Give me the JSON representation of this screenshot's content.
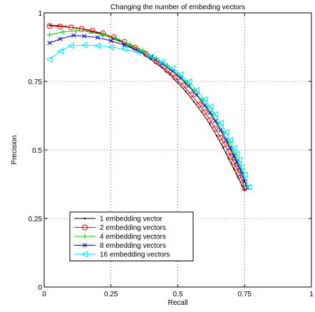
{
  "chart_data": {
    "type": "line",
    "title": "Changing the number of embeding vectors",
    "xlabel": "Recall",
    "ylabel": "Precision",
    "xlim": [
      0,
      1
    ],
    "ylim": [
      0,
      1
    ],
    "xticks": [
      0,
      0.25,
      0.5,
      0.75,
      1
    ],
    "xtick_labels": [
      "0",
      "0.25",
      "0.5",
      "0.75",
      "1"
    ],
    "yticks": [
      0,
      0.25,
      0.5,
      0.75,
      1
    ],
    "ytick_labels": [
      "0",
      "0.25",
      "0.5",
      "0.75",
      "1"
    ],
    "grid": true,
    "grid_style": "dotted",
    "legend_position": "bottom-left",
    "series": [
      {
        "name": "1 embedding vector",
        "color": "#000000",
        "marker": "dot",
        "x": [
          0.02,
          0.05,
          0.08,
          0.12,
          0.16,
          0.2,
          0.24,
          0.28,
          0.32,
          0.36,
          0.4,
          0.44,
          0.47,
          0.5,
          0.53,
          0.56,
          0.59,
          0.62,
          0.645,
          0.67,
          0.69,
          0.71,
          0.725,
          0.74,
          0.75
        ],
        "y": [
          0.955,
          0.953,
          0.95,
          0.945,
          0.937,
          0.927,
          0.914,
          0.898,
          0.878,
          0.856,
          0.83,
          0.8,
          0.775,
          0.745,
          0.713,
          0.676,
          0.637,
          0.594,
          0.552,
          0.507,
          0.468,
          0.43,
          0.4,
          0.37,
          0.355
        ]
      },
      {
        "name": "2 embedding vectors",
        "color": "#ff0000",
        "marker": "circle",
        "x": [
          0.02,
          0.06,
          0.1,
          0.14,
          0.18,
          0.22,
          0.26,
          0.3,
          0.34,
          0.38,
          0.42,
          0.46,
          0.49,
          0.52,
          0.55,
          0.58,
          0.6,
          0.62,
          0.64,
          0.66,
          0.675,
          0.69,
          0.7,
          0.71,
          0.72,
          0.73,
          0.74,
          0.75
        ],
        "y": [
          0.952,
          0.95,
          0.947,
          0.942,
          0.935,
          0.925,
          0.911,
          0.894,
          0.873,
          0.85,
          0.822,
          0.79,
          0.764,
          0.735,
          0.702,
          0.665,
          0.638,
          0.609,
          0.578,
          0.545,
          0.52,
          0.493,
          0.474,
          0.455,
          0.435,
          0.414,
          0.392,
          0.36
        ]
      },
      {
        "name": "4 embedding vectors",
        "color": "#00cc00",
        "marker": "plus",
        "x": [
          0.02,
          0.07,
          0.12,
          0.17,
          0.22,
          0.27,
          0.32,
          0.37,
          0.42,
          0.46,
          0.5,
          0.53,
          0.56,
          0.59,
          0.61,
          0.63,
          0.65,
          0.67,
          0.69,
          0.7,
          0.71,
          0.72,
          0.73,
          0.74,
          0.75,
          0.755
        ],
        "y": [
          0.92,
          0.93,
          0.935,
          0.931,
          0.92,
          0.905,
          0.885,
          0.862,
          0.834,
          0.808,
          0.776,
          0.748,
          0.717,
          0.682,
          0.656,
          0.628,
          0.597,
          0.563,
          0.527,
          0.507,
          0.487,
          0.466,
          0.444,
          0.42,
          0.392,
          0.37
        ]
      },
      {
        "name": "8 embedding vectors",
        "color": "#0000cc",
        "marker": "x",
        "x": [
          0.02,
          0.06,
          0.11,
          0.15,
          0.2,
          0.25,
          0.3,
          0.35,
          0.4,
          0.44,
          0.48,
          0.51,
          0.54,
          0.57,
          0.6,
          0.62,
          0.64,
          0.66,
          0.68,
          0.695,
          0.71,
          0.72,
          0.73,
          0.74,
          0.75,
          0.76
        ],
        "y": [
          0.89,
          0.905,
          0.918,
          0.915,
          0.91,
          0.898,
          0.882,
          0.862,
          0.838,
          0.815,
          0.787,
          0.762,
          0.733,
          0.7,
          0.662,
          0.635,
          0.605,
          0.572,
          0.536,
          0.508,
          0.478,
          0.457,
          0.435,
          0.411,
          0.384,
          0.362
        ]
      },
      {
        "name": "16 embedding vectors",
        "color": "#00e5ff",
        "marker": "triangle-left",
        "x": [
          0.02,
          0.06,
          0.1,
          0.15,
          0.2,
          0.25,
          0.3,
          0.35,
          0.4,
          0.44,
          0.48,
          0.51,
          0.54,
          0.57,
          0.6,
          0.62,
          0.64,
          0.66,
          0.68,
          0.695,
          0.71,
          0.72,
          0.73,
          0.74,
          0.75,
          0.765
        ],
        "y": [
          0.83,
          0.86,
          0.88,
          0.882,
          0.88,
          0.875,
          0.868,
          0.857,
          0.84,
          0.822,
          0.798,
          0.775,
          0.749,
          0.718,
          0.684,
          0.658,
          0.63,
          0.598,
          0.564,
          0.536,
          0.506,
          0.485,
          0.463,
          0.438,
          0.41,
          0.365
        ]
      }
    ]
  }
}
